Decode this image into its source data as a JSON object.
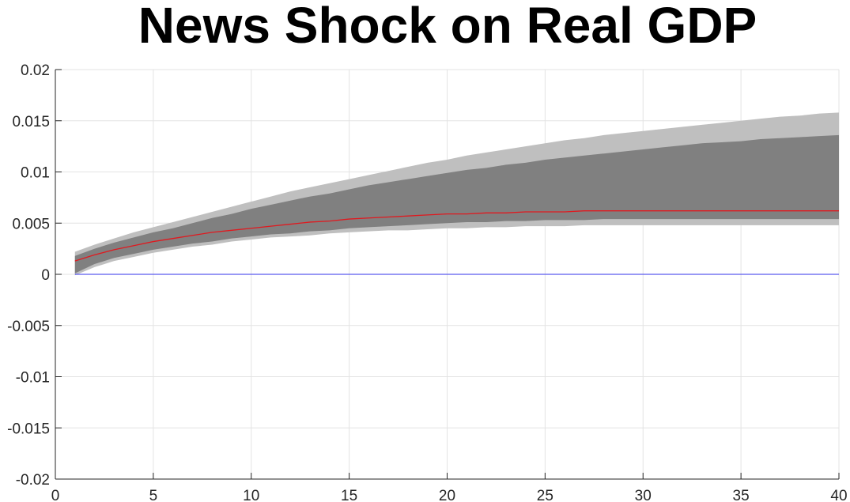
{
  "chart_data": {
    "type": "area",
    "title": "News Shock on Real GDP",
    "xlabel": "",
    "ylabel": "",
    "xlim": [
      0,
      40
    ],
    "ylim": [
      -0.02,
      0.02
    ],
    "grid": true,
    "x_ticks": [
      0,
      5,
      10,
      15,
      20,
      25,
      30,
      35,
      40
    ],
    "x_tick_labels": [
      "0",
      "5",
      "10",
      "15",
      "20",
      "25",
      "30",
      "35",
      "40"
    ],
    "y_ticks": [
      0.02,
      0.015,
      0.01,
      0.005,
      0,
      -0.005,
      -0.01,
      -0.015,
      -0.02
    ],
    "y_tick_labels": [
      "0.02",
      "0.015",
      "0.01",
      "0.005",
      "0",
      "-0.005",
      "-0.01",
      "-0.015",
      "-0.02"
    ],
    "x": [
      1,
      2,
      3,
      4,
      5,
      6,
      7,
      8,
      9,
      10,
      11,
      12,
      13,
      14,
      15,
      16,
      17,
      18,
      19,
      20,
      21,
      22,
      23,
      24,
      25,
      26,
      27,
      28,
      29,
      30,
      31,
      32,
      33,
      34,
      35,
      36,
      37,
      38,
      39,
      40
    ],
    "bands": [
      {
        "upper": [
          0.0022,
          0.0029,
          0.0035,
          0.0041,
          0.0046,
          0.0051,
          0.0056,
          0.0061,
          0.0066,
          0.0071,
          0.0076,
          0.0081,
          0.0085,
          0.0089,
          0.0093,
          0.0097,
          0.0101,
          0.0105,
          0.0109,
          0.0112,
          0.0116,
          0.0119,
          0.0122,
          0.0125,
          0.0128,
          0.0131,
          0.0133,
          0.0136,
          0.0138,
          0.014,
          0.0142,
          0.0144,
          0.0146,
          0.0148,
          0.015,
          0.0152,
          0.0154,
          0.0155,
          0.0157,
          0.0158
        ],
        "lower": [
          -0.0001,
          0.0007,
          0.0013,
          0.0017,
          0.0021,
          0.0024,
          0.0027,
          0.0029,
          0.0032,
          0.0034,
          0.0036,
          0.0037,
          0.0038,
          0.004,
          0.0041,
          0.0042,
          0.0043,
          0.0043,
          0.0044,
          0.0045,
          0.0045,
          0.0046,
          0.0046,
          0.0047,
          0.0047,
          0.0047,
          0.0048,
          0.0048,
          0.0048,
          0.0048,
          0.0048,
          0.0048,
          0.0048,
          0.0048,
          0.0048,
          0.0048,
          0.0048,
          0.0048,
          0.0048,
          0.0048
        ],
        "color": "#bfbfbf"
      },
      {
        "upper": [
          0.0018,
          0.0025,
          0.0031,
          0.0036,
          0.0041,
          0.0045,
          0.005,
          0.0055,
          0.0059,
          0.0064,
          0.0068,
          0.0072,
          0.0076,
          0.0079,
          0.0083,
          0.0087,
          0.009,
          0.0093,
          0.0096,
          0.0099,
          0.0102,
          0.0104,
          0.0107,
          0.0109,
          0.0112,
          0.0114,
          0.0116,
          0.0118,
          0.012,
          0.0122,
          0.0124,
          0.0126,
          0.0128,
          0.0129,
          0.013,
          0.0132,
          0.0133,
          0.0134,
          0.0135,
          0.0136
        ],
        "lower": [
          0.0001,
          0.001,
          0.0016,
          0.002,
          0.0024,
          0.0027,
          0.003,
          0.0032,
          0.0035,
          0.0037,
          0.0039,
          0.004,
          0.0042,
          0.0043,
          0.0045,
          0.0046,
          0.0047,
          0.0048,
          0.0049,
          0.005,
          0.0051,
          0.0051,
          0.0052,
          0.0052,
          0.0053,
          0.0053,
          0.0053,
          0.0054,
          0.0054,
          0.0054,
          0.0054,
          0.0054,
          0.0054,
          0.0054,
          0.0054,
          0.0054,
          0.0054,
          0.0054,
          0.0054,
          0.0054
        ],
        "color": "#808080"
      }
    ],
    "series": [
      {
        "values": [
          0.0013,
          0.0019,
          0.0024,
          0.0028,
          0.0032,
          0.0035,
          0.0038,
          0.0041,
          0.0043,
          0.0045,
          0.0047,
          0.0049,
          0.0051,
          0.0052,
          0.0054,
          0.0055,
          0.0056,
          0.0057,
          0.0058,
          0.0059,
          0.0059,
          0.006,
          0.006,
          0.0061,
          0.0061,
          0.0061,
          0.0062,
          0.0062,
          0.0062,
          0.0062,
          0.0062,
          0.0062,
          0.0062,
          0.0062,
          0.0062,
          0.0062,
          0.0062,
          0.0062,
          0.0062,
          0.0062
        ],
        "color": "#e0191f"
      }
    ],
    "reference_line": {
      "y": 0,
      "color": "#5b5bef"
    }
  }
}
